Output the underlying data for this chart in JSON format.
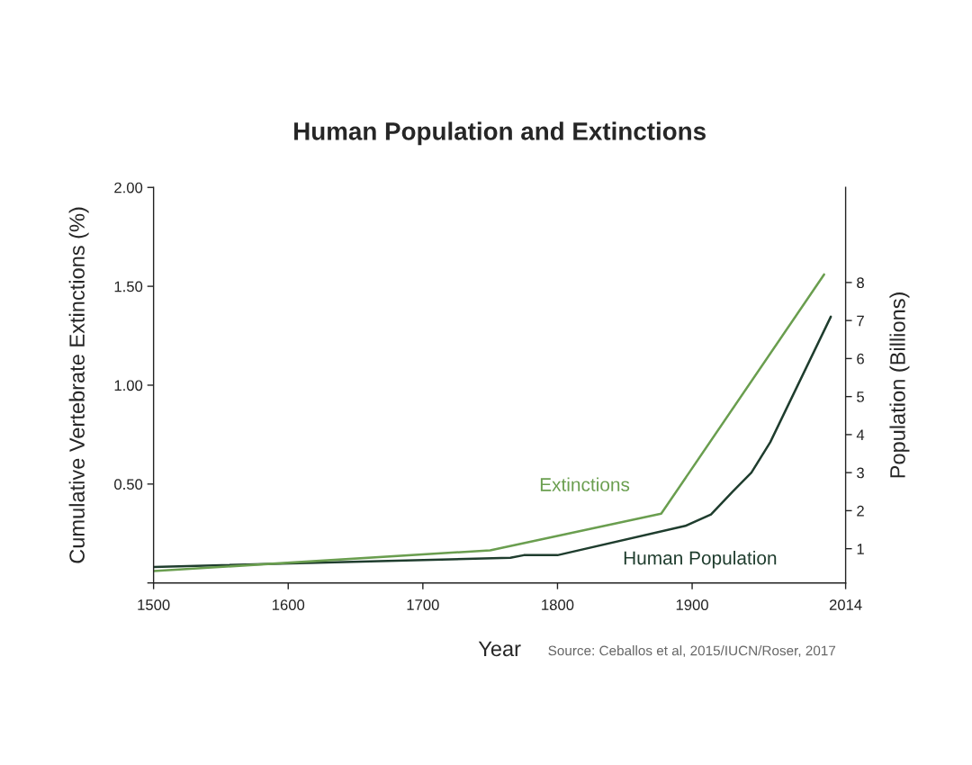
{
  "chart_data": {
    "type": "line",
    "title": "Human Population and Extinctions",
    "xlabel": "Year",
    "ylabel": "Cumulative Vertebrate Extinctions (%)",
    "y2label": "Population (Billions)",
    "xlim": [
      1500,
      2014
    ],
    "xticks": [
      1500,
      1600,
      1700,
      1800,
      1900,
      2014
    ],
    "ylim": [
      0,
      2.0
    ],
    "yticks": [
      {
        "value": 0,
        "label": null
      },
      {
        "value": 0.5,
        "label": "0.50"
      },
      {
        "value": 1.0,
        "label": "1.00"
      },
      {
        "value": 1.5,
        "label": "1.50"
      },
      {
        "value": 2.0,
        "label": "2.00"
      }
    ],
    "y2lim": [
      0.1,
      10.5
    ],
    "y2ticks": [
      1,
      2,
      3,
      4,
      5,
      6,
      7,
      8
    ],
    "grid": false,
    "legend": false,
    "marker": "none",
    "line_style": "solid",
    "series": [
      {
        "name": "Extinctions",
        "color": "#6a9e4f",
        "x": [
          1500,
          1750,
          1877,
          1998
        ],
        "values": [
          0.06,
          0.165,
          0.35,
          1.56
        ]
      },
      {
        "name": "Human Population",
        "color": "#1f3d2e",
        "axis": "y2",
        "x": [
          1500,
          1765,
          1775,
          1800,
          1895,
          1914,
          1930,
          1944,
          1958,
          2003
        ],
        "values": [
          0.52,
          0.76,
          0.83,
          0.83,
          1.6,
          1.9,
          2.5,
          3.0,
          3.8,
          7.1
        ]
      }
    ],
    "annotations": [
      "Source: Ceballos et al, 2015/IUCN/Roser, 2017"
    ]
  }
}
